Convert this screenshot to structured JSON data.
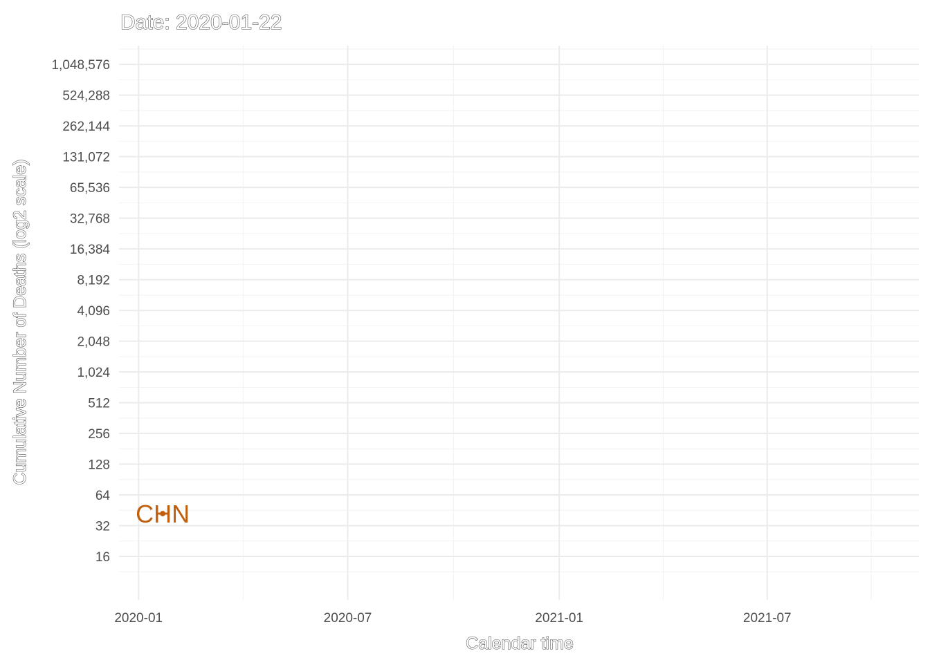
{
  "chart_data": {
    "type": "line",
    "title": "Date: 2020-01-22",
    "xlabel": "Calendar time",
    "ylabel": "Cumulative Number of Deaths (log2 scale)",
    "y_scale": "log2",
    "grid": true,
    "x_ticks": [
      "2020-01",
      "2020-07",
      "2021-01",
      "2021-07"
    ],
    "x_tick_dates": [
      "2020-01-01",
      "2020-07-01",
      "2021-01-01",
      "2021-07-01"
    ],
    "xlim": [
      "2019-12-15",
      "2021-11-10"
    ],
    "y_ticks": [
      16,
      32,
      64,
      128,
      256,
      512,
      1024,
      2048,
      4096,
      8192,
      16384,
      32768,
      65536,
      131072,
      262144,
      524288,
      1048576
    ],
    "y_tick_labels": [
      "16",
      "32",
      "64",
      "128",
      "256",
      "512",
      "1,024",
      "2,048",
      "4,096",
      "8,192",
      "16,384",
      "32,768",
      "65,536",
      "131,072",
      "262,144",
      "524,288",
      "1,048,576"
    ],
    "ylim": [
      6,
      1600000
    ],
    "series": [
      {
        "name": "CHN",
        "color": "#c0600f",
        "points": [
          {
            "x": "2020-01-22",
            "y": 42
          }
        ]
      }
    ]
  }
}
